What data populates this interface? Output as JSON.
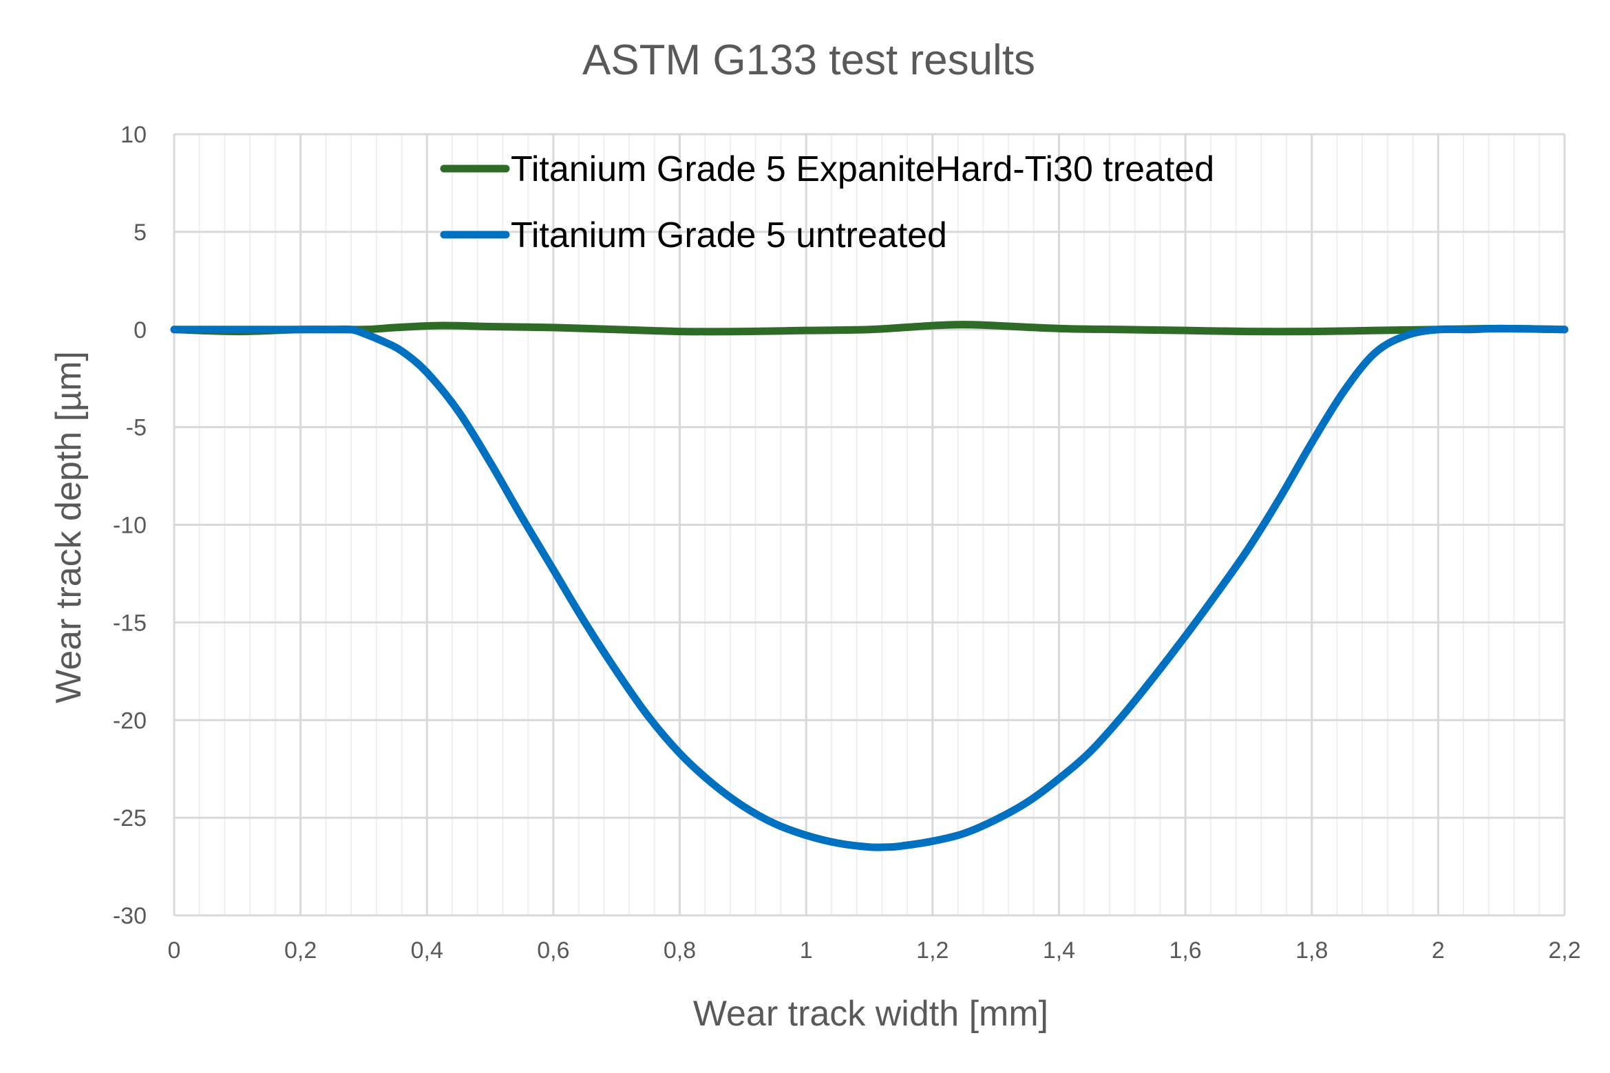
{
  "chart_data": {
    "type": "line",
    "title": "ASTM G133 test results",
    "xlabel": "Wear track width [mm]",
    "ylabel": "Wear track depth [µm]",
    "xlim": [
      0,
      2.2
    ],
    "ylim": [
      -30,
      10
    ],
    "x_ticks": [
      "0",
      "0,2",
      "0,4",
      "0,6",
      "0,8",
      "1",
      "1,2",
      "1,4",
      "1,6",
      "1,8",
      "2",
      "2,2"
    ],
    "y_ticks": [
      "10",
      "5",
      "0",
      "-5",
      "-10",
      "-15",
      "-20",
      "-25",
      "-30"
    ],
    "grid": true,
    "legend_position": "top-center",
    "series": [
      {
        "name": "Titanium Grade 5 ExpaniteHard-Ti30 treated",
        "color": "#2e6b26",
        "x": [
          0,
          0.1,
          0.2,
          0.3,
          0.35,
          0.42,
          0.5,
          0.6,
          0.7,
          0.8,
          0.9,
          1.0,
          1.1,
          1.2,
          1.25,
          1.3,
          1.4,
          1.5,
          1.6,
          1.7,
          1.8,
          1.9,
          2.0,
          2.1,
          2.2
        ],
        "y": [
          0,
          -0.1,
          0,
          0,
          0.1,
          0.2,
          0.15,
          0.1,
          0,
          -0.1,
          -0.1,
          -0.05,
          0,
          0.2,
          0.25,
          0.2,
          0.05,
          0,
          -0.05,
          -0.1,
          -0.1,
          -0.05,
          0,
          0.05,
          0
        ]
      },
      {
        "name": "Titanium Grade 5 untreated",
        "color": "#0070c0",
        "x": [
          0,
          0.1,
          0.2,
          0.25,
          0.28,
          0.3,
          0.33,
          0.36,
          0.4,
          0.45,
          0.5,
          0.55,
          0.6,
          0.65,
          0.7,
          0.75,
          0.8,
          0.85,
          0.9,
          0.95,
          1.0,
          1.05,
          1.1,
          1.13,
          1.15,
          1.2,
          1.25,
          1.3,
          1.35,
          1.4,
          1.45,
          1.5,
          1.55,
          1.6,
          1.65,
          1.7,
          1.75,
          1.8,
          1.85,
          1.9,
          1.95,
          2.0,
          2.05,
          2.1,
          2.2
        ],
        "y": [
          0,
          0,
          0,
          0,
          0,
          -0.2,
          -0.6,
          -1.1,
          -2.2,
          -4.2,
          -6.8,
          -9.6,
          -12.3,
          -15.0,
          -17.5,
          -19.8,
          -21.7,
          -23.2,
          -24.4,
          -25.3,
          -25.9,
          -26.3,
          -26.5,
          -26.5,
          -26.45,
          -26.2,
          -25.8,
          -25.1,
          -24.2,
          -23.0,
          -21.6,
          -19.8,
          -17.8,
          -15.7,
          -13.5,
          -11.2,
          -8.6,
          -5.8,
          -3.2,
          -1.2,
          -0.3,
          0,
          0,
          0.05,
          0
        ]
      }
    ]
  }
}
